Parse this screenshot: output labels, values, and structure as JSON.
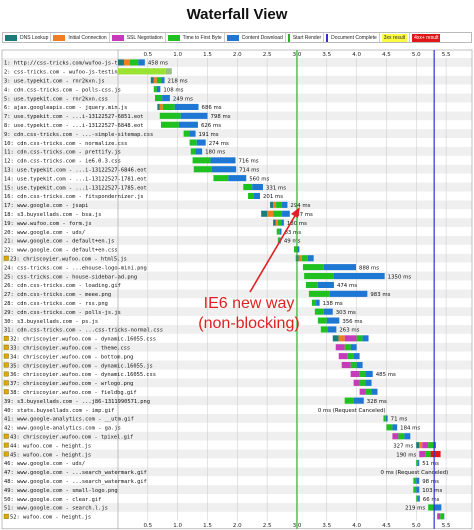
{
  "title": "Waterfall View",
  "legend": [
    {
      "label": "DNS Lookup",
      "color": "#1d7a7a",
      "kind": "swatch"
    },
    {
      "label": "Initial Connection",
      "color": "#f07d21",
      "kind": "swatch"
    },
    {
      "label": "SSL Negotiation",
      "color": "#c63bb9",
      "kind": "swatch"
    },
    {
      "label": "Time to First Byte",
      "color": "#20c020",
      "kind": "swatch"
    },
    {
      "label": "Content Download",
      "color": "#1f77d4",
      "kind": "swatch"
    },
    {
      "label": "Start Render",
      "color": "#2bb02b",
      "kind": "line"
    },
    {
      "label": "Document Complete",
      "color": "#3030d0",
      "kind": "line"
    },
    {
      "label": "3xx result",
      "color": "#ffff40",
      "kind": "box"
    },
    {
      "label": "4xx+ result",
      "color": "#e01818",
      "kind": "box"
    }
  ],
  "axis_ticks": [
    "0.5",
    "1.0",
    "1.5",
    "2.0",
    "2.5",
    "3.0",
    "3.5",
    "4.0",
    "4.5",
    "5.0",
    "5.5"
  ],
  "axis_max_seconds": 5.8,
  "start_render_seconds": 3.0,
  "document_complete_seconds": 5.3,
  "annotation": [
    "IE6 new way",
    "(non-blocking)"
  ],
  "rows": [
    {
      "n": "1",
      "url": "http://css-tricks.com/wufoo-js-testin...",
      "start": 0.0,
      "dns": 0.1,
      "conn": 0.1,
      "ssl": 0,
      "ttfb": 0.14,
      "dl": 0.11,
      "label": "458 ms"
    },
    {
      "n": "2",
      "url": "css-tricks.com - wufoo-js-testing-new",
      "start": 0.0,
      "dns": 0,
      "conn": 0,
      "ssl": 0,
      "ttfb": 0.8,
      "dl": 0.1,
      "label": "",
      "status": "3xx"
    },
    {
      "n": "3",
      "url": "use.typekit.com - rnr2kxn.js",
      "start": 0.55,
      "dns": 0.05,
      "conn": 0.05,
      "ssl": 0,
      "ttfb": 0.08,
      "dl": 0.05,
      "label": "218 ms"
    },
    {
      "n": "4",
      "url": "cdn.css-tricks.com - polls-css.js",
      "start": 0.6,
      "dns": 0,
      "conn": 0,
      "ssl": 0,
      "ttfb": 0.05,
      "dl": 0.06,
      "label": "108 ms"
    },
    {
      "n": "5",
      "url": "use.typekit.com - rnr2kxn.css",
      "start": 0.62,
      "dns": 0,
      "conn": 0,
      "ssl": 0,
      "ttfb": 0.12,
      "dl": 0.13,
      "label": "249 ms"
    },
    {
      "n": "6",
      "url": "ajax.googleapis.com - jquery.min.js",
      "start": 0.66,
      "dns": 0.04,
      "conn": 0.05,
      "ssl": 0,
      "ttfb": 0.2,
      "dl": 0.4,
      "label": "686 ms"
    },
    {
      "n": "7",
      "url": "use.typekit.com - ...i-13122527-6851.eot",
      "start": 0.7,
      "dns": 0,
      "conn": 0,
      "ssl": 0,
      "ttfb": 0.35,
      "dl": 0.45,
      "label": "798 ms"
    },
    {
      "n": "8",
      "url": "use.typekit.com - ...i-13122527-6848.eot",
      "start": 0.72,
      "dns": 0,
      "conn": 0,
      "ssl": 0,
      "ttfb": 0.3,
      "dl": 0.32,
      "label": "626 ms"
    },
    {
      "n": "9",
      "url": "cdn.css-tricks.com - ...-simple-sitemap.css",
      "start": 1.1,
      "dns": 0,
      "conn": 0,
      "ssl": 0,
      "ttfb": 0.1,
      "dl": 0.1,
      "label": "191 ms"
    },
    {
      "n": "10",
      "url": "cdn.css-tricks.com - normalize.css",
      "start": 1.2,
      "dns": 0,
      "conn": 0,
      "ssl": 0,
      "ttfb": 0.12,
      "dl": 0.15,
      "label": "274 ms"
    },
    {
      "n": "11",
      "url": "cdn.css-tricks.com - prettify.js",
      "start": 1.22,
      "dns": 0,
      "conn": 0,
      "ssl": 0,
      "ttfb": 0.08,
      "dl": 0.11,
      "label": "180 ms"
    },
    {
      "n": "12",
      "url": "cdn.css-tricks.com - ie6.0.3.css",
      "start": 1.25,
      "dns": 0,
      "conn": 0,
      "ssl": 0,
      "ttfb": 0.3,
      "dl": 0.42,
      "label": "716 ms"
    },
    {
      "n": "13",
      "url": "use.typekit.com - ...i-13122527-6846.eot",
      "start": 1.27,
      "dns": 0,
      "conn": 0,
      "ssl": 0,
      "ttfb": 0.3,
      "dl": 0.41,
      "label": "714 ms"
    },
    {
      "n": "14",
      "url": "use.typekit.com - ...i-13122527-1781.eot",
      "start": 1.6,
      "dns": 0,
      "conn": 0,
      "ssl": 0,
      "ttfb": 0.25,
      "dl": 0.3,
      "label": "560 ms"
    },
    {
      "n": "15",
      "url": "use.typekit.com - ...i-13122527-1785.eot",
      "start": 2.1,
      "dns": 0,
      "conn": 0,
      "ssl": 0,
      "ttfb": 0.15,
      "dl": 0.18,
      "label": "331 ms"
    },
    {
      "n": "16",
      "url": "cdn.css-tricks.com - fitspondernizer.js",
      "start": 2.18,
      "dns": 0,
      "conn": 0,
      "ssl": 0,
      "ttfb": 0.1,
      "dl": 0.1,
      "label": "201 ms"
    },
    {
      "n": "17",
      "url": "www.google.com - jsapi",
      "start": 2.55,
      "dns": 0.05,
      "conn": 0.05,
      "ssl": 0,
      "ttfb": 0.1,
      "dl": 0.09,
      "label": "294 ms"
    },
    {
      "n": "18",
      "url": "s3.buysellads.com - bsa.js",
      "start": 2.4,
      "dns": 0.1,
      "conn": 0.1,
      "ssl": 0,
      "ttfb": 0.15,
      "dl": 0.13,
      "label": "487 ms"
    },
    {
      "n": "19",
      "url": "www.wufoo.com - form.js",
      "start": 2.6,
      "dns": 0.04,
      "conn": 0.04,
      "ssl": 0,
      "ttfb": 0.06,
      "dl": 0.04,
      "label": "180 ms"
    },
    {
      "n": "20",
      "url": "www.google.com - uds/",
      "start": 2.66,
      "dns": 0,
      "conn": 0,
      "ssl": 0,
      "ttfb": 0.05,
      "dl": 0.03,
      "label": "83 ms"
    },
    {
      "n": "21",
      "url": "www.google.com - default+en.js",
      "start": 2.68,
      "dns": 0,
      "conn": 0,
      "ssl": 0,
      "ttfb": 0.04,
      "dl": 0.01,
      "label": "49 ms"
    },
    {
      "n": "22",
      "url": "www.google.com - default+en.css",
      "start": 2.95,
      "dns": 0,
      "conn": 0,
      "ssl": 0,
      "ttfb": 0.05,
      "dl": 0.04,
      "label": ""
    },
    {
      "n": "23",
      "url": "chriscoyier.wufoo.com - html5.js",
      "start": 2.98,
      "dns": 0.05,
      "conn": 0.05,
      "ssl": 0,
      "ttfb": 0.1,
      "dl": 0.1,
      "label": "",
      "lock": true
    },
    {
      "n": "24",
      "url": "css-tricks.com - ...ehouse-logo-mini.png",
      "start": 3.1,
      "dns": 0,
      "conn": 0,
      "ssl": 0,
      "ttfb": 0.35,
      "dl": 0.54,
      "label": "888 ms"
    },
    {
      "n": "25",
      "url": "css-tricks.com - house-sidebar-ad.png",
      "start": 3.12,
      "dns": 0,
      "conn": 0,
      "ssl": 0,
      "ttfb": 0.5,
      "dl": 0.85,
      "label": "1350 ms"
    },
    {
      "n": "26",
      "url": "cdn.css-tricks.com - loading.gif",
      "start": 3.15,
      "dns": 0,
      "conn": 0,
      "ssl": 0,
      "ttfb": 0.2,
      "dl": 0.27,
      "label": "474 ms"
    },
    {
      "n": "27",
      "url": "cdn.css-tricks.com - meee.png",
      "start": 3.2,
      "dns": 0,
      "conn": 0,
      "ssl": 0,
      "ttfb": 0.35,
      "dl": 0.63,
      "label": "983 ms"
    },
    {
      "n": "28",
      "url": "cdn.css-tricks.com - rss.png",
      "start": 3.25,
      "dns": 0,
      "conn": 0,
      "ssl": 0,
      "ttfb": 0.07,
      "dl": 0.06,
      "label": "138 ms"
    },
    {
      "n": "29",
      "url": "cdn.css-tricks.com - polls-js.js",
      "start": 3.3,
      "dns": 0,
      "conn": 0,
      "ssl": 0,
      "ttfb": 0.15,
      "dl": 0.15,
      "label": "303 ms"
    },
    {
      "n": "30",
      "url": "s3.buysellads.com - ps.js",
      "start": 3.35,
      "dns": 0,
      "conn": 0,
      "ssl": 0,
      "ttfb": 0.15,
      "dl": 0.21,
      "label": "356 ms"
    },
    {
      "n": "31",
      "url": "cdn.css-tricks.com - ...css-tricks-normal.css",
      "start": 3.4,
      "dns": 0,
      "conn": 0,
      "ssl": 0,
      "ttfb": 0.12,
      "dl": 0.14,
      "label": "263 ms"
    },
    {
      "n": "32",
      "url": "chriscoyier.wufoo.com - dynamic.16055.css",
      "start": 3.6,
      "dns": 0.1,
      "conn": 0.1,
      "ssl": 0.2,
      "ttfb": 0.1,
      "dl": 0.1,
      "label": "",
      "lock": true
    },
    {
      "n": "33",
      "url": "chriscoyier.wufoo.com - theme.css",
      "start": 3.65,
      "dns": 0,
      "conn": 0,
      "ssl": 0.15,
      "ttfb": 0.1,
      "dl": 0.1,
      "label": "",
      "lock": true
    },
    {
      "n": "34",
      "url": "chriscoyier.wufoo.com - bottom.png",
      "start": 3.7,
      "dns": 0,
      "conn": 0,
      "ssl": 0.15,
      "ttfb": 0.1,
      "dl": 0.1,
      "label": "",
      "lock": true
    },
    {
      "n": "35",
      "url": "chriscoyier.wufoo.com - dynamic.16055.js",
      "start": 3.75,
      "dns": 0,
      "conn": 0,
      "ssl": 0.15,
      "ttfb": 0.1,
      "dl": 0.1,
      "label": "",
      "lock": true
    },
    {
      "n": "36",
      "url": "chriscoyier.wufoo.com - dynamic.16055.css",
      "start": 3.9,
      "dns": 0,
      "conn": 0,
      "ssl": 0.15,
      "ttfb": 0.1,
      "dl": 0.12,
      "label": "485 ms",
      "lock": true
    },
    {
      "n": "37",
      "url": "chriscoyier.wufoo.com - wrlogo.png",
      "start": 3.95,
      "dns": 0,
      "conn": 0,
      "ssl": 0.1,
      "ttfb": 0.1,
      "dl": 0.1,
      "label": "",
      "lock": true
    },
    {
      "n": "38",
      "url": "chriscoyier.wufoo.com - fieldbg.gif",
      "start": 4.05,
      "dns": 0,
      "conn": 0,
      "ssl": 0.1,
      "ttfb": 0.1,
      "dl": 0.1,
      "label": "",
      "lock": true
    },
    {
      "n": "39",
      "url": "s3.buysellads.com - ...j86-1311990571.png",
      "start": 3.8,
      "dns": 0,
      "conn": 0,
      "ssl": 0,
      "ttfb": 0.15,
      "dl": 0.17,
      "label": "328 ms"
    },
    {
      "n": "40",
      "url": "stats.buysellads.com - imp.gif",
      "start": 3.3,
      "dns": 0,
      "conn": 0,
      "ssl": 0,
      "ttfb": 0,
      "dl": 0,
      "label": "0 ms (Request Canceled)"
    },
    {
      "n": "41",
      "url": "www.google-analytics.com - __utm.gif",
      "start": 4.45,
      "dns": 0,
      "conn": 0,
      "ssl": 0,
      "ttfb": 0.04,
      "dl": 0.03,
      "label": "71 ms"
    },
    {
      "n": "42",
      "url": "www.google-analytics.com - ga.js",
      "start": 4.5,
      "dns": 0,
      "conn": 0,
      "ssl": 0,
      "ttfb": 0.1,
      "dl": 0.08,
      "label": "184 ms"
    },
    {
      "n": "43",
      "url": "chriscoyier.wufoo.com - tpixel.gif",
      "start": 4.6,
      "dns": 0,
      "conn": 0,
      "ssl": 0.1,
      "ttfb": 0.1,
      "dl": 0.1,
      "label": "",
      "lock": true
    },
    {
      "n": "44",
      "url": "wufoo.com - height.js",
      "start": 5.0,
      "dns": 0.05,
      "conn": 0.05,
      "ssl": 0.1,
      "ttfb": 0.1,
      "dl": 0.03,
      "label": "327 ms",
      "lock": true
    },
    {
      "n": "45",
      "url": "wufoo.com - height.js",
      "start": 5.05,
      "dns": 0,
      "conn": 0,
      "ssl": 0.1,
      "ttfb": 0.09,
      "dl": 0.0,
      "label": "190 ms",
      "lock": true,
      "status": "4xx"
    },
    {
      "n": "46",
      "url": "www.google.com - uds/",
      "start": 5.0,
      "dns": 0,
      "conn": 0,
      "ssl": 0,
      "ttfb": 0.03,
      "dl": 0.02,
      "label": "51 ms"
    },
    {
      "n": "47",
      "url": "www.google.com - ...search_watermark.gif",
      "start": 4.35,
      "dns": 0,
      "conn": 0,
      "ssl": 0,
      "ttfb": 0,
      "dl": 0,
      "label": "0 ms (Request Canceled)"
    },
    {
      "n": "48",
      "url": "www.google.com - ...search_watermark.gif",
      "start": 4.95,
      "dns": 0,
      "conn": 0,
      "ssl": 0,
      "ttfb": 0.05,
      "dl": 0.05,
      "label": "98 ms"
    },
    {
      "n": "49",
      "url": "www.google.com - small-logo.png",
      "start": 4.95,
      "dns": 0,
      "conn": 0,
      "ssl": 0,
      "ttfb": 0.05,
      "dl": 0.05,
      "label": "103 ms"
    },
    {
      "n": "50",
      "url": "www.google.com - clear.gif",
      "start": 5.0,
      "dns": 0,
      "conn": 0,
      "ssl": 0,
      "ttfb": 0.03,
      "dl": 0.03,
      "label": "66 ms"
    },
    {
      "n": "51",
      "url": "www.google.com - search.l.js",
      "start": 5.2,
      "dns": 0,
      "conn": 0,
      "ssl": 0,
      "ttfb": 0.1,
      "dl": 0.12,
      "label": "219 ms"
    },
    {
      "n": "52",
      "url": "wufoo.com - height.js",
      "start": 5.35,
      "dns": 0,
      "conn": 0,
      "ssl": 0.05,
      "ttfb": 0.05,
      "dl": 0.02,
      "label": "",
      "lock": true
    }
  ]
}
